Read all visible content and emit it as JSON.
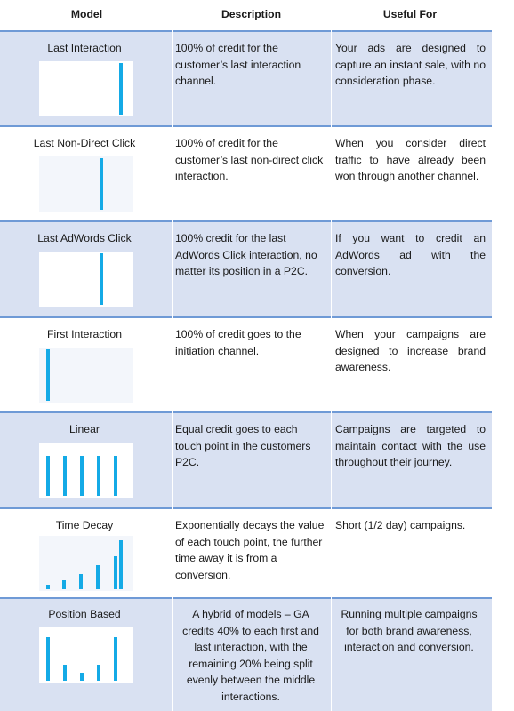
{
  "header": {
    "model": "Model",
    "description": "Description",
    "useful_for": "Useful For"
  },
  "rows": [
    {
      "model": "Last Interaction",
      "description": "100% of credit for the customer’s last interaction channel.",
      "useful_for": "Your ads are designed to capture an instant sale, with no consideration phase.",
      "bars": [
        0,
        0,
        0,
        0,
        0,
        1.0
      ]
    },
    {
      "model": "Last Non-Direct Click",
      "description": "100% of credit for the customer’s last non-direct click interaction.",
      "useful_for": "When you consider direct traffic to have already been won through another channel.",
      "bars": [
        0,
        0,
        0,
        0,
        1.0,
        0
      ]
    },
    {
      "model": "Last AdWords Click",
      "description": "100% credit for the last AdWords Click interaction, no matter its position in a P2C.",
      "useful_for": "If you want to credit an AdWords ad with the conversion.",
      "bars": [
        0,
        0,
        0,
        0,
        1.0,
        0
      ]
    },
    {
      "model": "First Interaction",
      "description": "100% of credit goes to the initiation channel.",
      "useful_for": "When your campaigns are designed to increase brand awareness.",
      "bars": [
        1.0,
        0,
        0,
        0,
        0,
        0
      ]
    },
    {
      "model": "Linear",
      "description": "Equal credit goes to each touch point in the customers P2C.",
      "useful_for": "Campaigns are targeted to maintain contact with the use throughout their journey.",
      "bars": [
        0.78,
        0.78,
        0.78,
        0.78,
        0.78,
        0
      ]
    },
    {
      "model": "Time Decay",
      "description": "Exponentially decays the value of each touch point, the further time away it is from a conversion.",
      "useful_for": "Short (1/2 day) campaigns.",
      "bars": [
        0.08,
        0.18,
        0.3,
        0.46,
        0.63,
        0.95
      ]
    },
    {
      "model": "Position Based",
      "description": "A hybrid of models – GA credits 40% to each first and last interaction, with the remaining 20% being split evenly between the middle interactions.",
      "useful_for": "Running multiple campaigns for both brand awareness, interaction and conversion.",
      "bars": [
        0.84,
        0.31,
        0.15,
        0.31,
        0.84,
        0
      ]
    }
  ],
  "bar_color": "#14aae6",
  "shade_color": "#d9e1f2",
  "separator_color": "#6f9ad6"
}
